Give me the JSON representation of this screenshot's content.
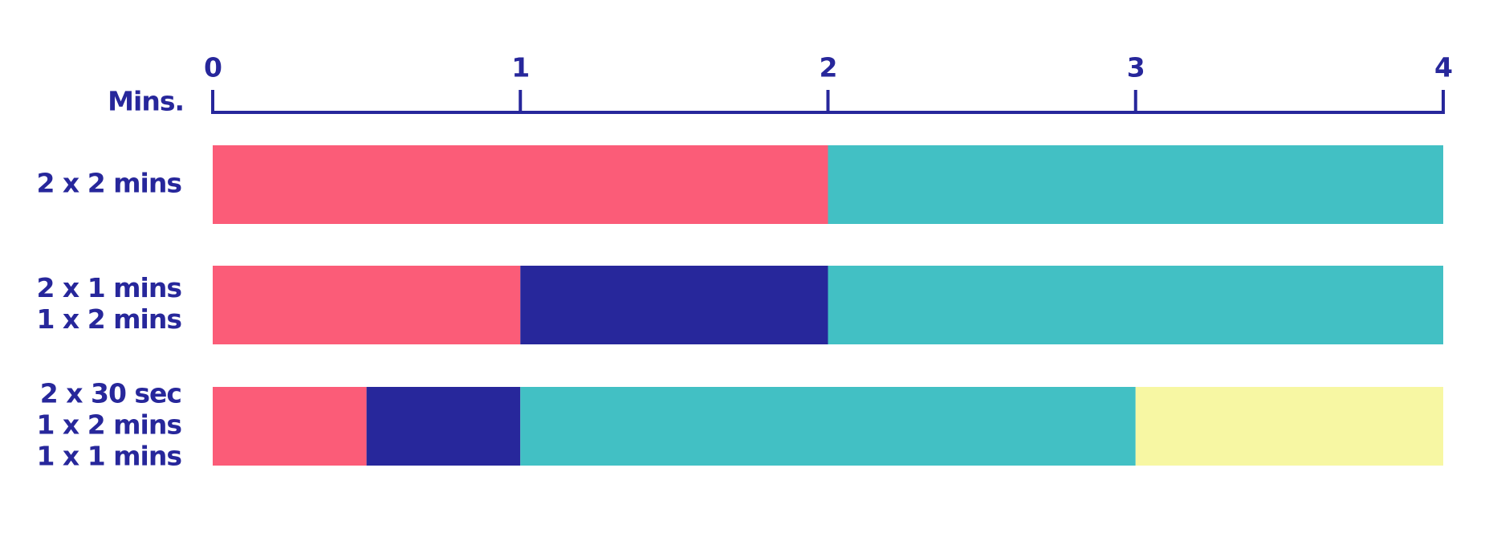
{
  "chart_data": {
    "type": "stacked-bar",
    "orientation": "horizontal",
    "x_label": "Mins.",
    "categories": [
      [
        "2 x 2 mins"
      ],
      [
        "2 x 1 mins",
        "1 x 2 mins"
      ],
      [
        "2 x 30 sec",
        "1 x 2 mins",
        "1 x 1 mins"
      ]
    ],
    "series": [
      {
        "color": "#fb5c78",
        "values": [
          2,
          1,
          0.5
        ]
      },
      {
        "color": "#27279b",
        "values": [
          null,
          1,
          0.5
        ]
      },
      {
        "color": "#42c0c4",
        "values": [
          2,
          2,
          2
        ]
      },
      {
        "color": "#f7f7a3",
        "values": [
          null,
          null,
          1
        ]
      }
    ],
    "xlim": [
      0,
      4
    ],
    "xticks": [
      0,
      1,
      2,
      3,
      4
    ],
    "axis_position": "top",
    "axis_color": "#27279b"
  }
}
